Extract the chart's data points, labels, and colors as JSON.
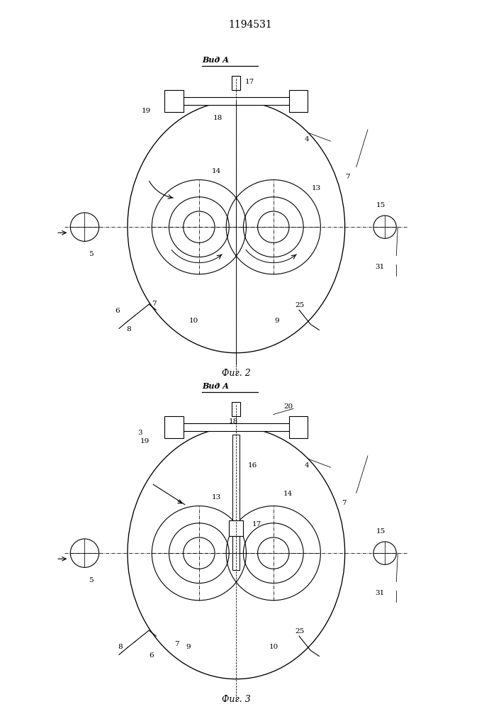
{
  "title": "1194531",
  "fig2_caption": "Фиг. 2",
  "fig3_caption": "Фиг. 3",
  "vid_a_label": "Вид А",
  "background_color": "#ffffff",
  "line_color": "#000000",
  "fontsize": 7.5,
  "fontsize_caption": 9,
  "fontsize_vid": 8,
  "fontsize_title": 10
}
